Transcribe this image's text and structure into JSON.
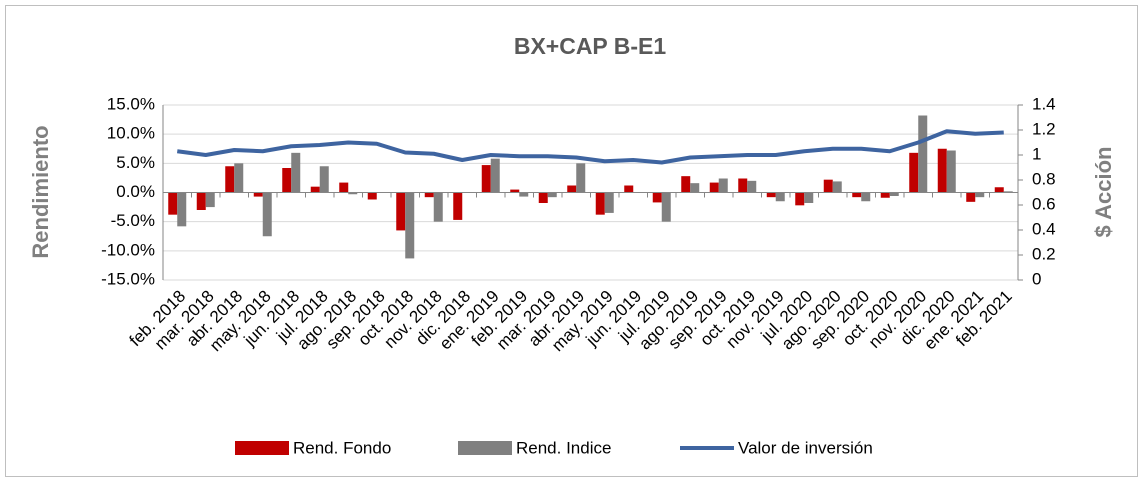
{
  "chart_data": {
    "type": "bar_line",
    "title": "BX+CAP   B-E1",
    "ylabel": "Rendimiento",
    "y2label": "$ Acción",
    "categories": [
      "feb. 2018",
      "mar. 2018",
      "abr. 2018",
      "may. 2018",
      "jun. 2018",
      "jul. 2018",
      "ago. 2018",
      "sep. 2018",
      "oct. 2018",
      "nov. 2018",
      "dic. 2018",
      "ene. 2019",
      "feb. 2019",
      "mar. 2019",
      "abr. 2019",
      "may. 2019",
      "jun. 2019",
      "jul. 2019",
      "ago. 2019",
      "sep. 2019",
      "oct. 2019",
      "nov. 2019",
      "jul. 2020",
      "ago. 2020",
      "sep. 2020",
      "oct. 2020",
      "nov. 2020",
      "dic. 2020",
      "ene. 2021",
      "feb. 2021"
    ],
    "series": [
      {
        "name": "Rend. Fondo",
        "type": "bar",
        "color": "#c00000",
        "values": [
          -3.8,
          -3.0,
          4.5,
          -0.7,
          4.2,
          1.0,
          1.7,
          -1.2,
          -6.5,
          -0.8,
          -4.7,
          4.7,
          0.5,
          -1.8,
          1.2,
          -3.8,
          1.2,
          -1.7,
          2.8,
          1.7,
          2.4,
          -0.8,
          -2.2,
          2.2,
          -0.8,
          -0.9,
          6.8,
          7.5,
          -1.6,
          0.9
        ]
      },
      {
        "name": "Rend. Indice",
        "type": "bar",
        "color": "#808080",
        "values": [
          -5.8,
          -2.5,
          5.0,
          -7.5,
          6.8,
          4.5,
          -0.3,
          0,
          -11.3,
          -5.0,
          0,
          5.8,
          -0.7,
          -0.8,
          5.0,
          -3.5,
          0,
          -5.0,
          1.6,
          2.4,
          2.0,
          -1.5,
          -1.8,
          1.9,
          -1.5,
          -0.6,
          13.2,
          7.2,
          -0.8,
          0.2
        ]
      },
      {
        "name": "Valor de inversión",
        "type": "line",
        "axis": "y2",
        "color": "#3e64a0",
        "values": [
          1.03,
          1.0,
          1.04,
          1.03,
          1.07,
          1.08,
          1.1,
          1.09,
          1.02,
          1.01,
          0.96,
          1.0,
          0.99,
          0.99,
          0.98,
          0.95,
          0.96,
          0.94,
          0.98,
          0.99,
          1.0,
          1.0,
          1.03,
          1.05,
          1.05,
          1.03,
          1.1,
          1.19,
          1.17,
          1.18
        ]
      }
    ],
    "ylim": [
      -15,
      15
    ],
    "yticks": [
      {
        "value": -15,
        "label": "-15.0%"
      },
      {
        "value": -10,
        "label": "-10.0%"
      },
      {
        "value": -5,
        "label": "-5.0%"
      },
      {
        "value": 0,
        "label": "0.0%"
      },
      {
        "value": 5,
        "label": "5.0%"
      },
      {
        "value": 10,
        "label": "10.0%"
      },
      {
        "value": 15,
        "label": "15.0%"
      }
    ],
    "y2lim": [
      0,
      1.4
    ],
    "y2ticks": [
      0,
      0.2,
      0.4,
      0.6,
      0.8,
      1,
      1.2,
      1.4
    ],
    "grid": true,
    "legend": "bottom"
  }
}
